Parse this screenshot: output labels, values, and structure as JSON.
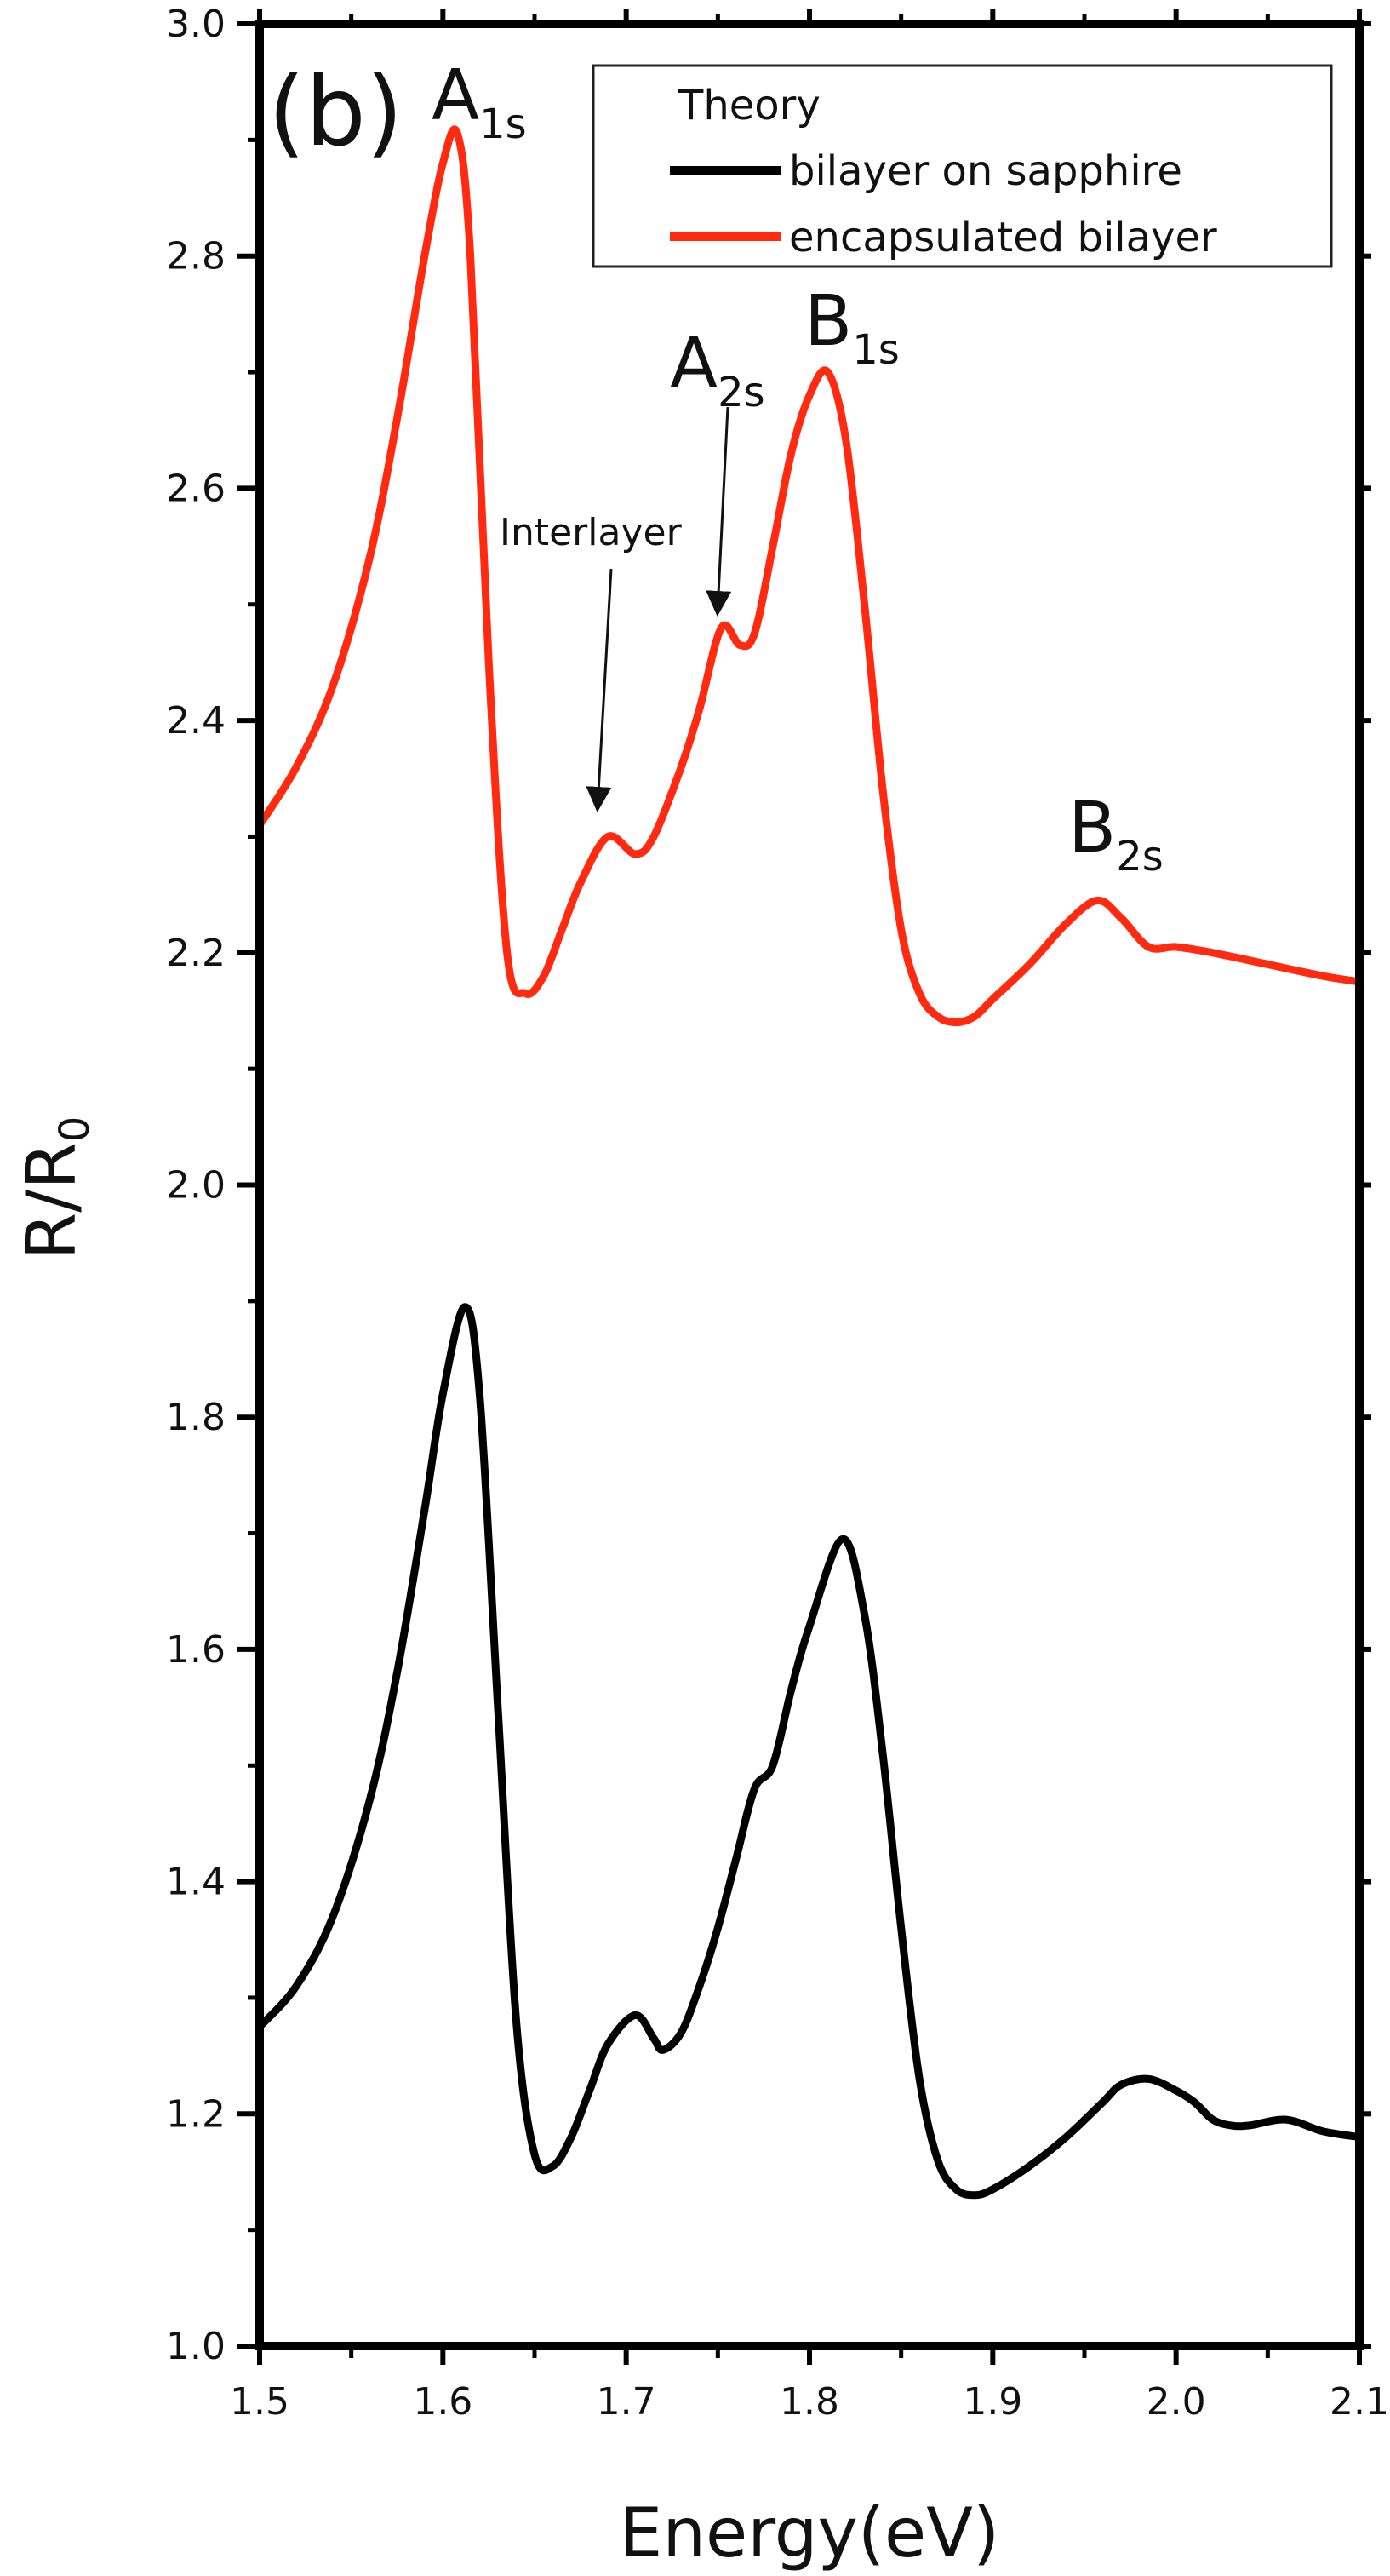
{
  "panel_label": "(b)",
  "chart_data": {
    "type": "line",
    "xlabel": "Energy(eV)",
    "ylabel": {
      "base": "R/R",
      "sub": "0"
    },
    "xlim": [
      1.5,
      2.1
    ],
    "ylim": [
      1.0,
      3.0
    ],
    "x_ticks": [
      "1.5",
      "1.6",
      "1.7",
      "1.8",
      "1.9",
      "2.0",
      "2.1"
    ],
    "y_ticks": [
      "1.0",
      "1.2",
      "1.4",
      "1.6",
      "1.8",
      "2.0",
      "2.2",
      "2.4",
      "2.6",
      "2.8",
      "3.0"
    ],
    "legend": {
      "title": "Theory",
      "position": "top-right"
    },
    "series": [
      {
        "name": "bilayer on sapphire",
        "color": "#000000",
        "x": [
          1.5,
          1.52,
          1.54,
          1.56,
          1.575,
          1.59,
          1.6,
          1.612,
          1.62,
          1.63,
          1.64,
          1.65,
          1.66,
          1.67,
          1.68,
          1.69,
          1.705,
          1.715,
          1.72,
          1.73,
          1.74,
          1.75,
          1.76,
          1.77,
          1.78,
          1.79,
          1.8,
          1.818,
          1.83,
          1.84,
          1.85,
          1.86,
          1.87,
          1.88,
          1.89,
          1.9,
          1.92,
          1.94,
          1.96,
          1.97,
          1.985,
          2.0,
          2.01,
          2.02,
          2.03,
          2.04,
          2.06,
          2.08,
          2.1
        ],
        "y": [
          1.275,
          1.31,
          1.37,
          1.47,
          1.58,
          1.72,
          1.82,
          1.895,
          1.82,
          1.55,
          1.28,
          1.165,
          1.155,
          1.18,
          1.22,
          1.26,
          1.285,
          1.265,
          1.255,
          1.27,
          1.31,
          1.36,
          1.42,
          1.48,
          1.5,
          1.565,
          1.62,
          1.695,
          1.63,
          1.51,
          1.36,
          1.23,
          1.16,
          1.135,
          1.13,
          1.135,
          1.155,
          1.18,
          1.21,
          1.225,
          1.23,
          1.22,
          1.21,
          1.195,
          1.19,
          1.19,
          1.195,
          1.185,
          1.18
        ]
      },
      {
        "name": "encapsulated bilayer",
        "color": "#ff2a10",
        "x": [
          1.5,
          1.52,
          1.54,
          1.56,
          1.575,
          1.59,
          1.6,
          1.608,
          1.615,
          1.625,
          1.635,
          1.645,
          1.655,
          1.665,
          1.675,
          1.69,
          1.705,
          1.715,
          1.73,
          1.74,
          1.752,
          1.762,
          1.77,
          1.78,
          1.79,
          1.8,
          1.81,
          1.82,
          1.83,
          1.84,
          1.85,
          1.86,
          1.87,
          1.88,
          1.89,
          1.9,
          1.92,
          1.94,
          1.957,
          1.97,
          1.985,
          2.0,
          2.02,
          2.05,
          2.08,
          2.1
        ],
        "y": [
          2.31,
          2.36,
          2.43,
          2.54,
          2.66,
          2.8,
          2.88,
          2.905,
          2.8,
          2.45,
          2.2,
          2.165,
          2.18,
          2.22,
          2.26,
          2.3,
          2.285,
          2.3,
          2.36,
          2.41,
          2.48,
          2.465,
          2.475,
          2.55,
          2.63,
          2.68,
          2.7,
          2.64,
          2.5,
          2.34,
          2.22,
          2.165,
          2.145,
          2.14,
          2.145,
          2.16,
          2.19,
          2.225,
          2.245,
          2.23,
          2.205,
          2.205,
          2.2,
          2.19,
          2.18,
          2.175
        ]
      }
    ],
    "annotations": [
      {
        "base": "A",
        "sub": "1s"
      },
      {
        "base": "A",
        "sub": "2s"
      },
      {
        "base": "B",
        "sub": "1s"
      },
      {
        "base": "B",
        "sub": "2s"
      },
      {
        "text": "Interlayer"
      }
    ]
  }
}
